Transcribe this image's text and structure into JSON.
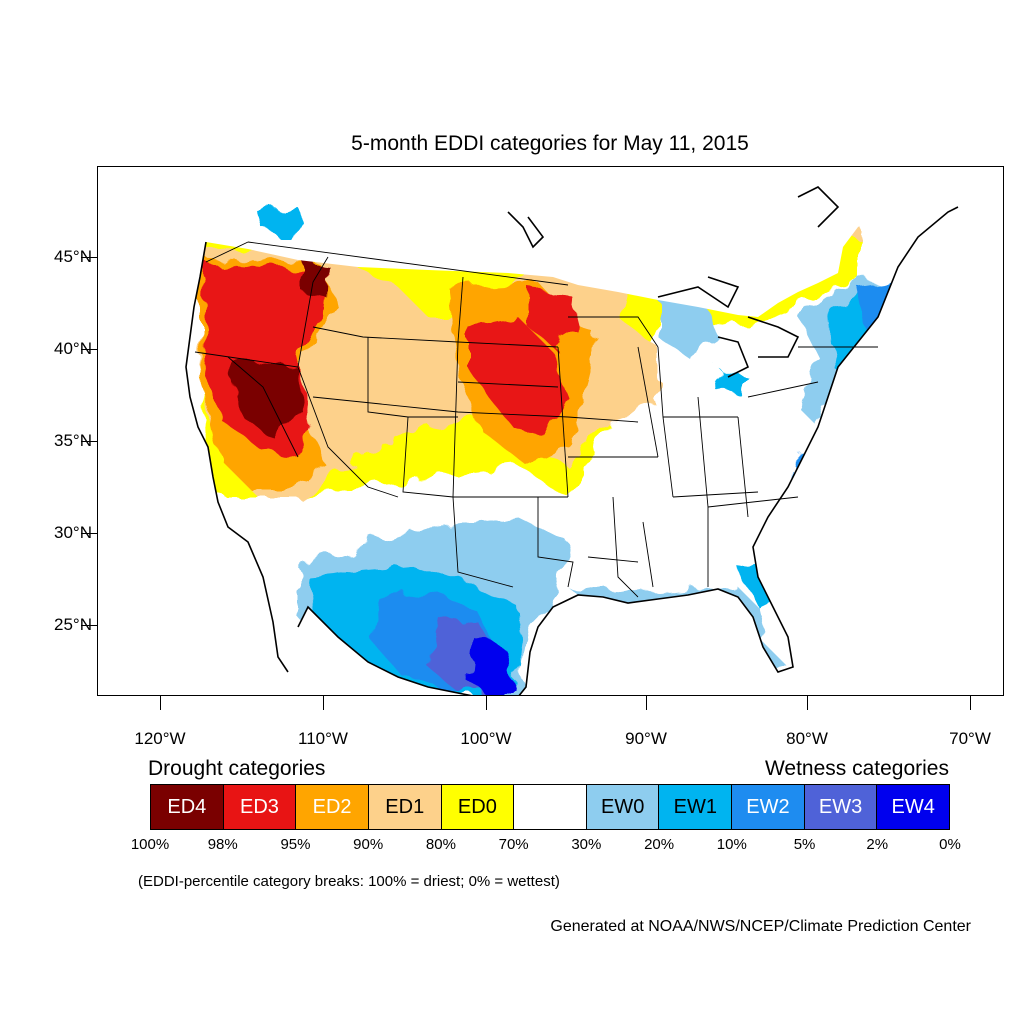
{
  "title": "5-month EDDI categories for May 11, 2015",
  "lat_labels": [
    "45°N",
    "40°N",
    "35°N",
    "30°N",
    "25°N"
  ],
  "lon_labels": [
    "120°W",
    "110°W",
    "100°W",
    "90°W",
    "80°W",
    "70°W"
  ],
  "legend": {
    "drought_title": "Drought categories",
    "wetness_title": "Wetness categories",
    "categories": [
      {
        "label": "ED4",
        "color": "#7a0000",
        "text_color": "#ffffff"
      },
      {
        "label": "ED3",
        "color": "#e81414",
        "text_color": "#ffffff"
      },
      {
        "label": "ED2",
        "color": "#ffa500",
        "text_color": "#ffffff"
      },
      {
        "label": "ED1",
        "color": "#fdd18b",
        "text_color": "#000000"
      },
      {
        "label": "ED0",
        "color": "#ffff00",
        "text_color": "#000000"
      },
      {
        "label": "",
        "color": "#ffffff",
        "text_color": "#000000"
      },
      {
        "label": "EW0",
        "color": "#8ecdef",
        "text_color": "#000000"
      },
      {
        "label": "EW1",
        "color": "#00b4f0",
        "text_color": "#000000"
      },
      {
        "label": "EW2",
        "color": "#1e8cf0",
        "text_color": "#ffffff"
      },
      {
        "label": "EW3",
        "color": "#4f62d8",
        "text_color": "#ffffff"
      },
      {
        "label": "EW4",
        "color": "#0000ee",
        "text_color": "#ffffff"
      }
    ],
    "percentiles": [
      "100%",
      "98%",
      "95%",
      "90%",
      "80%",
      "70%",
      "30%",
      "20%",
      "10%",
      "5%",
      "2%",
      "0%"
    ],
    "note": "(EDDI-percentile category breaks: 100% = driest; 0% = wettest)"
  },
  "credit": "Generated at NOAA/NWS/NCEP/Climate Prediction Center"
}
